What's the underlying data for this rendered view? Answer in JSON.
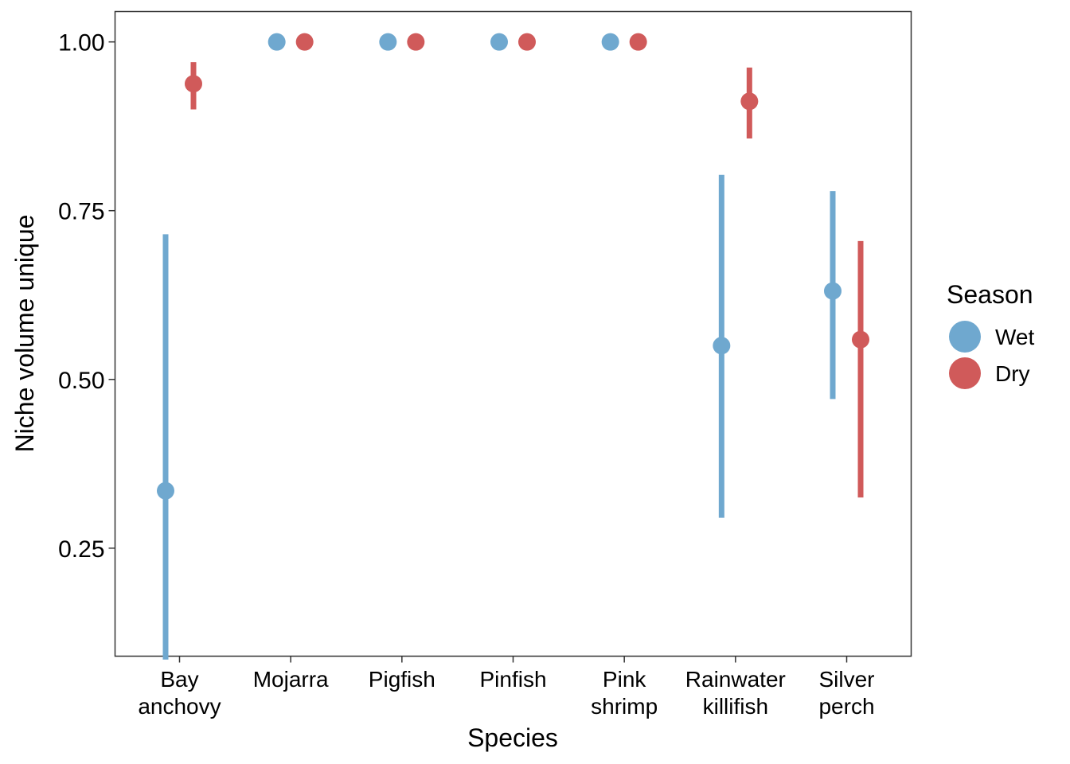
{
  "chart_data": {
    "type": "scatter",
    "title": "",
    "xlabel": "Species",
    "ylabel": "Niche volume unique",
    "ylim": [
      0.09,
      1.045
    ],
    "yticks": [
      0.25,
      0.5,
      0.75,
      1.0
    ],
    "ytick_labels": [
      "0.25",
      "0.50",
      "0.75",
      "1.00"
    ],
    "grid": false,
    "categories": [
      {
        "id": "bay-anchovy",
        "lines": [
          "Bay",
          "anchovy"
        ]
      },
      {
        "id": "mojarra",
        "lines": [
          "Mojarra"
        ]
      },
      {
        "id": "pigfish",
        "lines": [
          "Pigfish"
        ]
      },
      {
        "id": "pinfish",
        "lines": [
          "Pinfish"
        ]
      },
      {
        "id": "pink-shrimp",
        "lines": [
          "Pink",
          "shrimp"
        ]
      },
      {
        "id": "rainwater-killifish",
        "lines": [
          "Rainwater",
          "killifish"
        ]
      },
      {
        "id": "silver-perch",
        "lines": [
          "Silver",
          "perch"
        ]
      }
    ],
    "legend": {
      "title": "Season",
      "position": "right"
    },
    "series": [
      {
        "name": "Wet",
        "color": "#6fa8cf",
        "points": [
          {
            "y": 0.335,
            "low": 0.085,
            "high": 0.715
          },
          {
            "y": 1.0,
            "low": 1.0,
            "high": 1.0
          },
          {
            "y": 1.0,
            "low": 1.0,
            "high": 1.0
          },
          {
            "y": 1.0,
            "low": 1.0,
            "high": 1.0
          },
          {
            "y": 1.0,
            "low": 1.0,
            "high": 1.0
          },
          {
            "y": 0.55,
            "low": 0.295,
            "high": 0.803
          },
          {
            "y": 0.631,
            "low": 0.471,
            "high": 0.779
          }
        ]
      },
      {
        "name": "Dry",
        "color": "#d05a5a",
        "points": [
          {
            "y": 0.938,
            "low": 0.9,
            "high": 0.97
          },
          {
            "y": 1.0,
            "low": 1.0,
            "high": 1.0
          },
          {
            "y": 1.0,
            "low": 1.0,
            "high": 1.0
          },
          {
            "y": 1.0,
            "low": 1.0,
            "high": 1.0
          },
          {
            "y": 1.0,
            "low": 1.0,
            "high": 1.0
          },
          {
            "y": 0.912,
            "low": 0.857,
            "high": 0.962
          },
          {
            "y": 0.559,
            "low": 0.325,
            "high": 0.705
          }
        ]
      }
    ]
  }
}
